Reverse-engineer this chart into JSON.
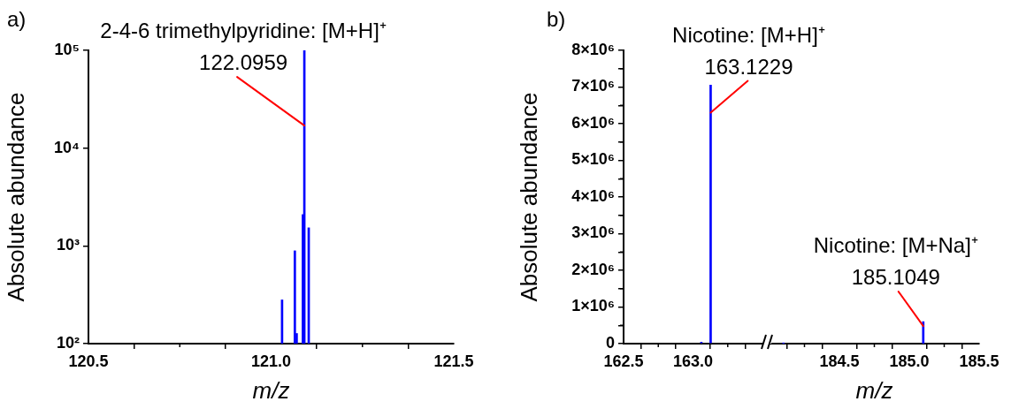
{
  "chart_data": [
    {
      "type": "bar",
      "title": "a)",
      "xlabel": "m/z",
      "ylabel": "Absolute abundance",
      "color": "#0000ff",
      "log": "y",
      "grid": false,
      "legend": false,
      "x": [
        121.03,
        121.065,
        121.07,
        121.087,
        121.091,
        121.103
      ],
      "values": [
        280,
        890,
        127,
        2090,
        100000,
        1530
      ],
      "xlim": [
        120.5,
        121.5
      ],
      "xticks": [
        120.5,
        {
          "value": 120.75,
          "label": null
        },
        {
          "value": 121,
          "label": "121.0"
        },
        {
          "value": 121.25,
          "label": null
        },
        121.5
      ],
      "ylim": [
        100,
        100000
      ],
      "yticks": [
        {
          "value": 100,
          "label": "10²"
        },
        {
          "value": 1000,
          "label": "10³"
        },
        {
          "value": 10000,
          "label": "10⁴"
        },
        {
          "value": 100000,
          "label": "10⁵"
        }
      ],
      "annotations": [
        {
          "text": "2-4-6 trimethylpyridine: [M+H]⁺\n122.0959",
          "x": 121.091,
          "y": 17000
        }
      ]
    },
    {
      "type": "bar",
      "title": "b)",
      "ylabel": "Absolute abundance",
      "color": "#0000ff",
      "grid": false,
      "legend": false,
      "x": [
        163.06,
        163.127
      ],
      "values": [
        40000,
        7050000
      ],
      "xlim": [
        162.5,
        163.5
      ],
      "xticks": [
        162.5,
        {
          "value": 162.75,
          "label": null
        },
        {
          "value": 163,
          "label": "163.0"
        },
        {
          "value": 163.25,
          "label": null
        }
      ],
      "ylim": [
        0,
        8000000
      ],
      "yticks": [
        0,
        {
          "value": 500000,
          "label": null
        },
        {
          "value": 1000000,
          "label": "1×10⁶"
        },
        {
          "value": 1500000,
          "label": null
        },
        {
          "value": 2000000,
          "label": "2×10⁶"
        },
        {
          "value": 2500000,
          "label": null
        },
        {
          "value": 3000000,
          "label": "3×10⁶"
        },
        {
          "value": 3500000,
          "label": null
        },
        {
          "value": 4000000,
          "label": "4×10⁶"
        },
        {
          "value": 4500000,
          "label": null
        },
        {
          "value": 5000000,
          "label": "5×10⁶"
        },
        {
          "value": 5500000,
          "label": null
        },
        {
          "value": 6000000,
          "label": "6×10⁶"
        },
        {
          "value": 6500000,
          "label": null
        },
        {
          "value": 7000000,
          "label": "7×10⁶"
        },
        {
          "value": 7500000,
          "label": null
        },
        {
          "value": 8000000,
          "label": "8×10⁶"
        }
      ],
      "annotations": [
        {
          "text": "Nicotine: [M+H]⁺\n163.1229",
          "x": 163.127,
          "y": 6300000
        }
      ]
    },
    {
      "type": "bar",
      "xlabel": "m/z",
      "color": "#0000ff",
      "grid": false,
      "legend": false,
      "tick_labels": "x",
      "x": [
        184.1,
        185.1
      ],
      "values": [
        20000,
        600000
      ],
      "xlim": [
        184,
        185.5
      ],
      "xticks": [
        {
          "value": 184.25,
          "label": null
        },
        184.5,
        {
          "value": 184.75,
          "label": null
        },
        {
          "value": 185,
          "label": "185.0"
        },
        {
          "value": 185.25,
          "label": null
        },
        185.5
      ],
      "ylim": [
        0,
        8000000
      ],
      "annotations": [
        {
          "text": "Nicotine: [M+Na]⁺\n185.1049",
          "x": 185.1,
          "y": 480000
        }
      ]
    }
  ]
}
